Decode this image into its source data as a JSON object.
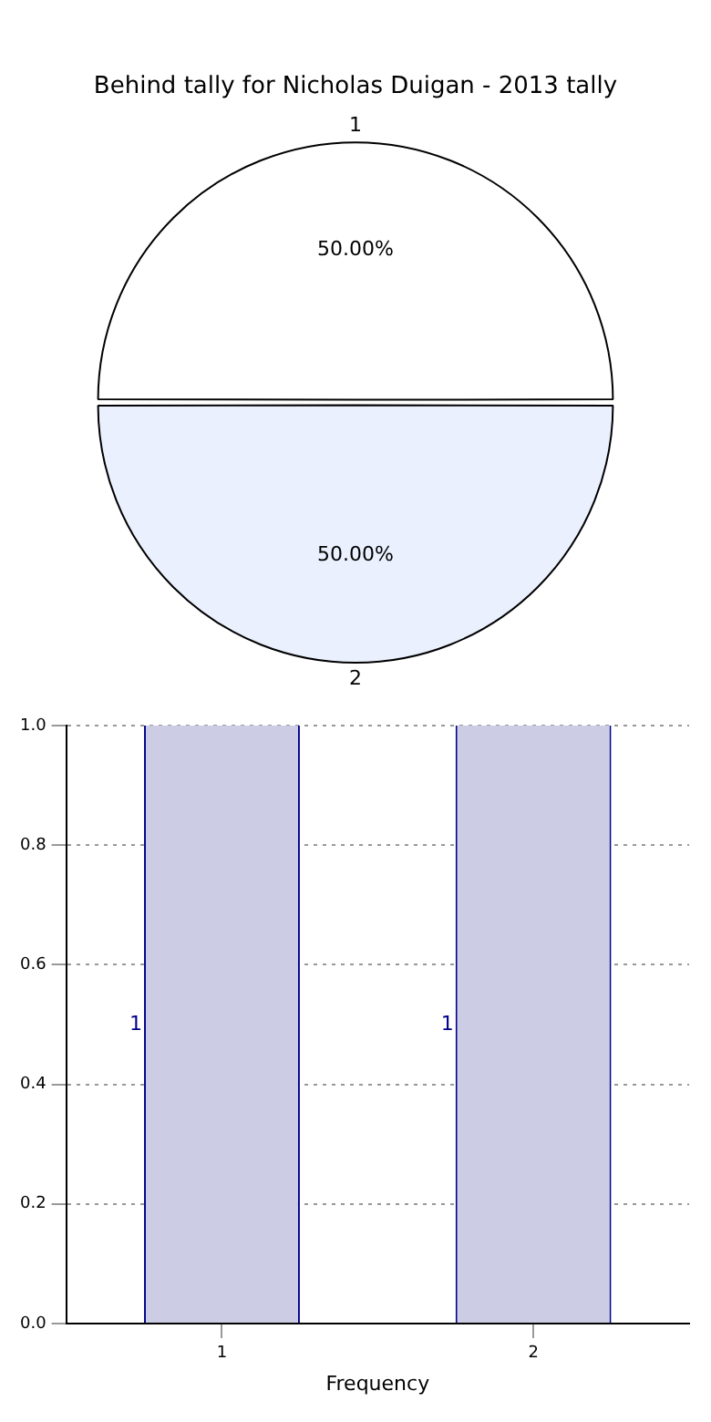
{
  "chart_data": [
    {
      "type": "pie",
      "title": "Behind tally for Nicholas Duigan - 2013 tally",
      "categories": [
        "1",
        "2"
      ],
      "values": [
        50,
        50
      ],
      "colors": [
        "#ffffff",
        "#eaf0fd"
      ],
      "value_labels": [
        "50.00%",
        "50.00%"
      ]
    },
    {
      "type": "bar",
      "categories": [
        "1",
        "2"
      ],
      "values": [
        1,
        1
      ],
      "color": "#cccce5",
      "xlabel": "Frequency",
      "ylim": [
        0,
        1
      ],
      "yticks": [
        {
          "value": 0,
          "label": "0.0"
        },
        {
          "value": 0.2,
          "label": "0.2"
        },
        {
          "value": 0.4,
          "label": "0.4"
        },
        {
          "value": 0.6,
          "label": "0.6"
        },
        {
          "value": 0.8,
          "label": "0.8"
        },
        {
          "value": 1,
          "label": "1.0"
        }
      ],
      "grid": true,
      "data_labels": true
    }
  ]
}
